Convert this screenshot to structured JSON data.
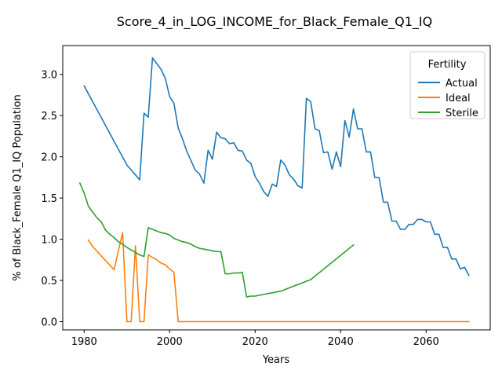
{
  "chart_data": {
    "type": "line",
    "title": "Score_4_in_LOG_INCOME_for_Black_Female_Q1_IQ",
    "xlabel": "Years",
    "ylabel": "% of Black_Female Q1_IQ Population",
    "xlim": [
      1975,
      2075
    ],
    "ylim": [
      -0.1,
      3.35
    ],
    "xticks": [
      1980,
      2000,
      2020,
      2040,
      2060
    ],
    "yticks": [
      0.0,
      0.5,
      1.0,
      1.5,
      2.0,
      2.5,
      3.0
    ],
    "ytick_labels": [
      "0.0",
      "0.5",
      "1.0",
      "1.5",
      "2.0",
      "2.5",
      "3.0"
    ],
    "grid": false,
    "legend": {
      "title": "Fertility",
      "position": "top-right"
    },
    "series": [
      {
        "name": "Actual",
        "color": "#1f77b4",
        "x": [
          1980,
          1990,
          1992,
          1993,
          1994,
          1995,
          1996,
          1998,
          1999,
          2000,
          2001,
          2002,
          2003,
          2004,
          2006,
          2007,
          2008,
          2009,
          2010,
          2011,
          2012,
          2013,
          2014,
          2015,
          2016,
          2017,
          2018,
          2019,
          2020,
          2021,
          2022,
          2023,
          2024,
          2025,
          2026,
          2027,
          2028,
          2029,
          2030,
          2031,
          2032,
          2033,
          2034,
          2035,
          2036,
          2037,
          2038,
          2039,
          2040,
          2041,
          2042,
          2043,
          2044,
          2045,
          2046,
          2047,
          2048,
          2049,
          2050,
          2051,
          2052,
          2053,
          2054,
          2055,
          2056,
          2057,
          2058,
          2059,
          2060,
          2061,
          2062,
          2063,
          2064,
          2065,
          2066,
          2067,
          2068,
          2069,
          2070
        ],
        "y": [
          2.86,
          1.9,
          1.78,
          1.72,
          2.53,
          2.48,
          3.2,
          3.06,
          2.95,
          2.73,
          2.65,
          2.35,
          2.22,
          2.07,
          1.84,
          1.79,
          1.68,
          2.08,
          1.97,
          2.3,
          2.23,
          2.22,
          2.16,
          2.17,
          2.08,
          2.07,
          1.96,
          1.92,
          1.76,
          1.68,
          1.58,
          1.52,
          1.67,
          1.64,
          1.96,
          1.9,
          1.78,
          1.73,
          1.65,
          1.62,
          2.71,
          2.67,
          2.34,
          2.32,
          2.05,
          2.06,
          1.85,
          2.06,
          1.88,
          2.44,
          2.24,
          2.58,
          2.34,
          2.34,
          2.06,
          2.06,
          1.75,
          1.75,
          1.45,
          1.45,
          1.22,
          1.22,
          1.12,
          1.12,
          1.18,
          1.18,
          1.24,
          1.24,
          1.21,
          1.21,
          1.06,
          1.06,
          0.9,
          0.9,
          0.76,
          0.76,
          0.64,
          0.66,
          0.56
        ]
      },
      {
        "name": "Ideal",
        "color": "#ff7f0e",
        "x": [
          1981,
          1982,
          1987,
          1989,
          1990,
          1991,
          1992,
          1993,
          1994,
          1995,
          1996,
          1997,
          1998,
          1999,
          2000,
          2001,
          2002,
          2070
        ],
        "y": [
          0.99,
          0.91,
          0.63,
          1.08,
          0.0,
          0.0,
          0.92,
          0.0,
          0.0,
          0.81,
          0.78,
          0.75,
          0.71,
          0.69,
          0.64,
          0.6,
          0.0,
          0.0
        ]
      },
      {
        "name": "Sterile",
        "color": "#2ca02c",
        "x": [
          1979,
          1980,
          1981,
          1982,
          1983,
          1984,
          1985,
          1986,
          1987,
          1988,
          1989,
          1990,
          1991,
          1992,
          1993,
          1994,
          1995,
          1996,
          1997,
          1998,
          1999,
          2000,
          2001,
          2002,
          2003,
          2004,
          2005,
          2006,
          2007,
          2008,
          2009,
          2010,
          2011,
          2012,
          2013,
          2014,
          2015,
          2016,
          2017,
          2018,
          2019,
          2020,
          2021,
          2022,
          2023,
          2024,
          2025,
          2026,
          2027,
          2028,
          2029,
          2030,
          2031,
          2032,
          2033,
          2043
        ],
        "y": [
          1.68,
          1.56,
          1.4,
          1.33,
          1.26,
          1.21,
          1.11,
          1.06,
          1.02,
          0.97,
          0.94,
          0.9,
          0.87,
          0.84,
          0.81,
          0.79,
          1.14,
          1.12,
          1.1,
          1.08,
          1.07,
          1.05,
          1.01,
          0.99,
          0.97,
          0.96,
          0.94,
          0.91,
          0.89,
          0.88,
          0.87,
          0.86,
          0.85,
          0.85,
          0.58,
          0.58,
          0.59,
          0.59,
          0.6,
          0.3,
          0.31,
          0.31,
          0.32,
          0.33,
          0.34,
          0.35,
          0.36,
          0.37,
          0.39,
          0.41,
          0.43,
          0.45,
          0.47,
          0.49,
          0.51,
          0.93
        ]
      }
    ]
  }
}
